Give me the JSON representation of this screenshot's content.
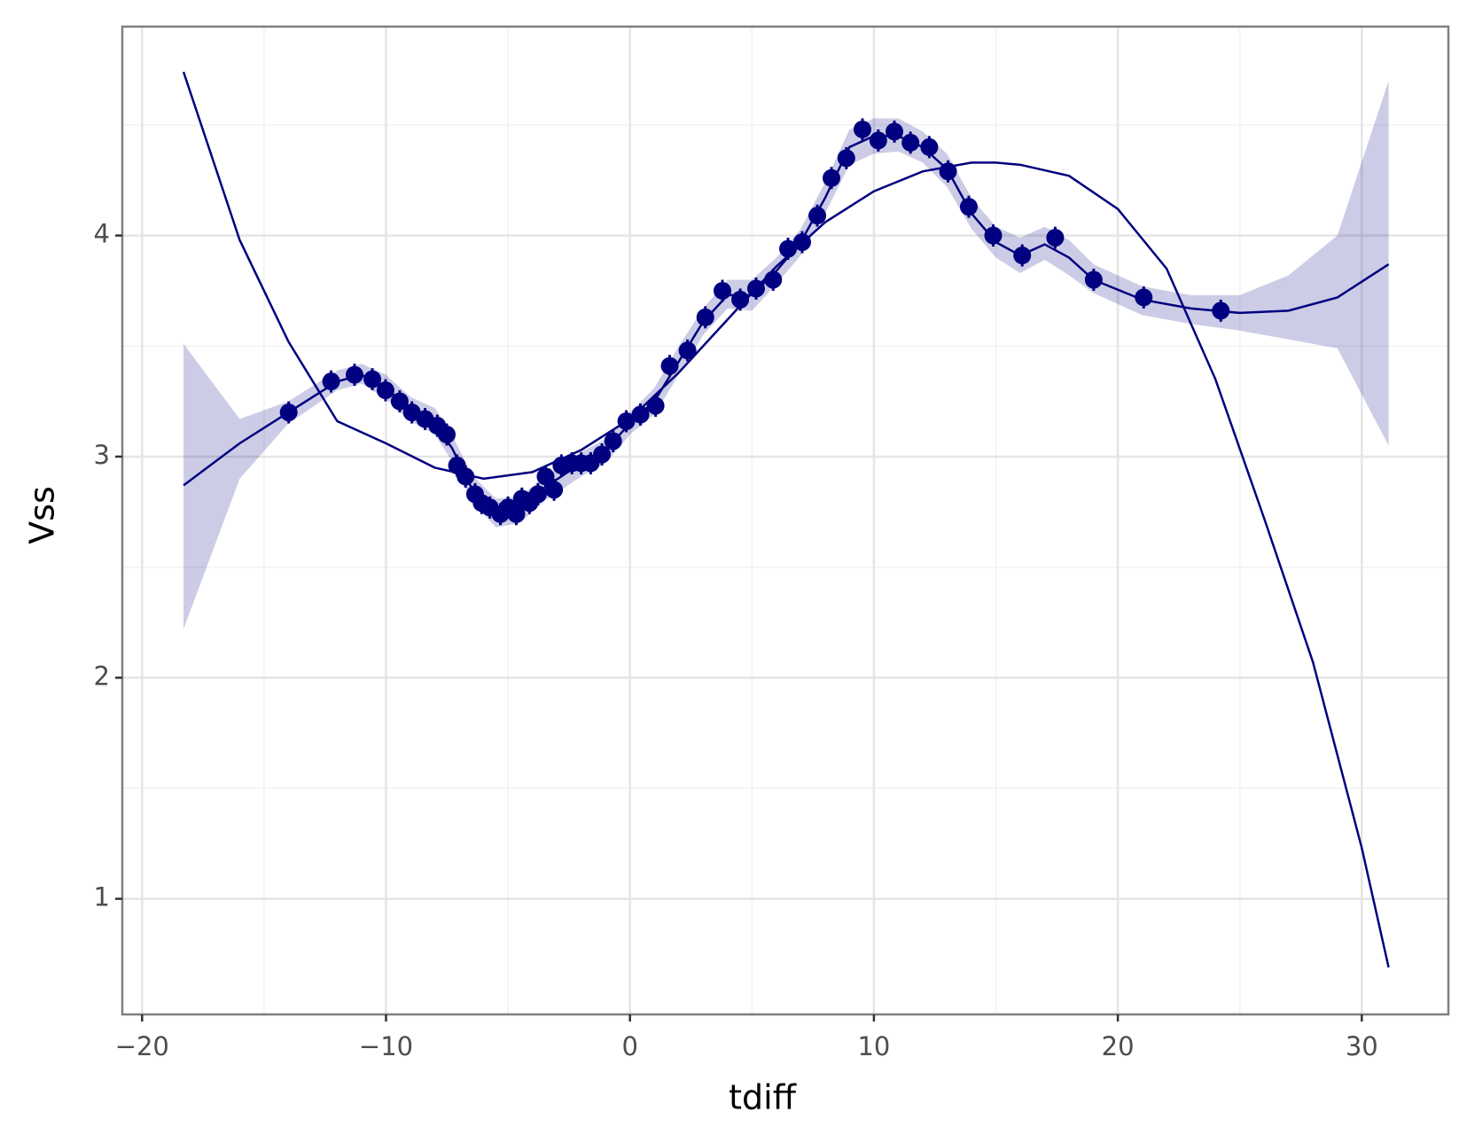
{
  "chart_data": {
    "type": "scatter",
    "x_label": "tdiff",
    "y_label": "Vss",
    "color": "#000080",
    "ribbon_color": "#000080",
    "grid": true,
    "xlim": [
      -20.81,
      33.55
    ],
    "ylim": [
      0.477,
      4.945
    ],
    "xticks": [
      {
        "value": -20,
        "label": "−20"
      },
      {
        "value": -10,
        "label": "−10"
      },
      0,
      10,
      20,
      30
    ],
    "yticks": [
      1,
      2,
      3,
      4
    ],
    "xminor": [
      -15,
      -5,
      5,
      15,
      25
    ],
    "yminor": [
      1.5,
      2.5,
      3.5,
      4.5
    ],
    "x": [
      -13.99,
      -12.25,
      -11.29,
      -10.56,
      -10.02,
      -9.44,
      -8.94,
      -8.4,
      -7.9,
      -7.51,
      -7.09,
      -6.74,
      -6.35,
      -6.08,
      -5.74,
      -5.31,
      -5.0,
      -4.66,
      -4.43,
      -4.12,
      -3.77,
      -3.46,
      -3.11,
      -2.81,
      -2.38,
      -2.0,
      -1.61,
      -1.15,
      -0.69,
      -0.15,
      0.43,
      1.05,
      1.63,
      2.36,
      3.09,
      3.79,
      4.52,
      5.17,
      5.87,
      6.48,
      7.06,
      7.68,
      8.26,
      8.87,
      9.53,
      10.18,
      10.84,
      11.5,
      12.27,
      13.04,
      13.89,
      14.89,
      16.08,
      17.43,
      19.01,
      21.06,
      24.22
    ],
    "values": [
      3.2,
      3.34,
      3.37,
      3.35,
      3.3,
      3.25,
      3.2,
      3.17,
      3.14,
      3.1,
      2.96,
      2.91,
      2.83,
      2.79,
      2.77,
      2.74,
      2.77,
      2.74,
      2.81,
      2.79,
      2.83,
      2.91,
      2.85,
      2.96,
      2.97,
      2.97,
      2.97,
      3.01,
      3.07,
      3.16,
      3.19,
      3.23,
      3.41,
      3.48,
      3.63,
      3.75,
      3.71,
      3.76,
      3.8,
      3.94,
      3.97,
      4.09,
      4.26,
      4.35,
      4.48,
      4.43,
      4.47,
      4.42,
      4.4,
      4.29,
      4.13,
      4.0,
      3.91,
      3.99,
      3.8,
      3.72,
      3.66
    ],
    "errors": [
      0.05,
      0.05,
      0.05,
      0.05,
      0.05,
      0.05,
      0.05,
      0.05,
      0.05,
      0.05,
      0.05,
      0.05,
      0.05,
      0.05,
      0.05,
      0.05,
      0.05,
      0.05,
      0.05,
      0.05,
      0.05,
      0.05,
      0.05,
      0.05,
      0.05,
      0.05,
      0.05,
      0.05,
      0.05,
      0.05,
      0.05,
      0.05,
      0.05,
      0.05,
      0.05,
      0.05,
      0.05,
      0.05,
      0.05,
      0.05,
      0.05,
      0.05,
      0.05,
      0.05,
      0.05,
      0.05,
      0.05,
      0.05,
      0.05,
      0.05,
      0.05,
      0.05,
      0.05,
      0.05,
      0.05,
      0.05,
      0.05
    ],
    "smooth": {
      "x": [
        -18.3,
        -16,
        -14,
        -12,
        -11,
        -10,
        -9,
        -8,
        -7.3,
        -6.5,
        -5.5,
        -4.5,
        -3.5,
        -2,
        -1,
        0,
        1,
        2,
        3,
        4,
        5,
        6,
        7,
        8,
        9,
        10,
        11,
        12,
        13,
        14,
        15,
        16,
        17,
        18,
        19,
        21,
        23,
        25,
        27,
        29,
        31.1
      ],
      "values": [
        2.87,
        3.06,
        3.2,
        3.34,
        3.37,
        3.31,
        3.21,
        3.15,
        3.04,
        2.86,
        2.75,
        2.76,
        2.86,
        2.97,
        3.03,
        3.15,
        3.25,
        3.43,
        3.61,
        3.73,
        3.73,
        3.84,
        3.97,
        4.17,
        4.4,
        4.45,
        4.45,
        4.4,
        4.3,
        4.1,
        3.97,
        3.91,
        3.96,
        3.9,
        3.8,
        3.71,
        3.67,
        3.65,
        3.66,
        3.72,
        3.87
      ],
      "lower": [
        2.22,
        2.9,
        3.15,
        3.3,
        3.33,
        3.26,
        3.16,
        3.1,
        2.98,
        2.8,
        2.68,
        2.7,
        2.8,
        2.91,
        2.97,
        3.1,
        3.19,
        3.37,
        3.55,
        3.67,
        3.66,
        3.78,
        3.91,
        4.1,
        4.32,
        4.37,
        4.38,
        4.33,
        4.22,
        4.03,
        3.9,
        3.83,
        3.89,
        3.82,
        3.74,
        3.64,
        3.6,
        3.57,
        3.53,
        3.49,
        3.05
      ],
      "upper": [
        3.51,
        3.17,
        3.25,
        3.39,
        3.42,
        3.37,
        3.27,
        3.22,
        3.1,
        2.92,
        2.81,
        2.82,
        2.91,
        3.02,
        3.08,
        3.2,
        3.31,
        3.5,
        3.67,
        3.8,
        3.8,
        3.9,
        4.03,
        4.24,
        4.48,
        4.53,
        4.53,
        4.47,
        4.37,
        4.17,
        4.04,
        3.99,
        4.04,
        3.98,
        3.87,
        3.77,
        3.73,
        3.73,
        3.82,
        4.0,
        4.7
      ]
    },
    "fit": {
      "x": [
        -18.3,
        -16,
        -14,
        -12,
        -10,
        -8,
        -6,
        -4,
        -2,
        0,
        2,
        4,
        6,
        8,
        10,
        12,
        14,
        15,
        16,
        18,
        20,
        22,
        24,
        26,
        28,
        30,
        31.1
      ],
      "values": [
        4.74,
        3.98,
        3.52,
        3.16,
        3.06,
        2.95,
        2.9,
        2.93,
        3.03,
        3.17,
        3.38,
        3.62,
        3.86,
        4.06,
        4.2,
        4.29,
        4.33,
        4.33,
        4.32,
        4.27,
        4.12,
        3.85,
        3.35,
        2.72,
        2.07,
        1.23,
        0.69
      ]
    }
  }
}
